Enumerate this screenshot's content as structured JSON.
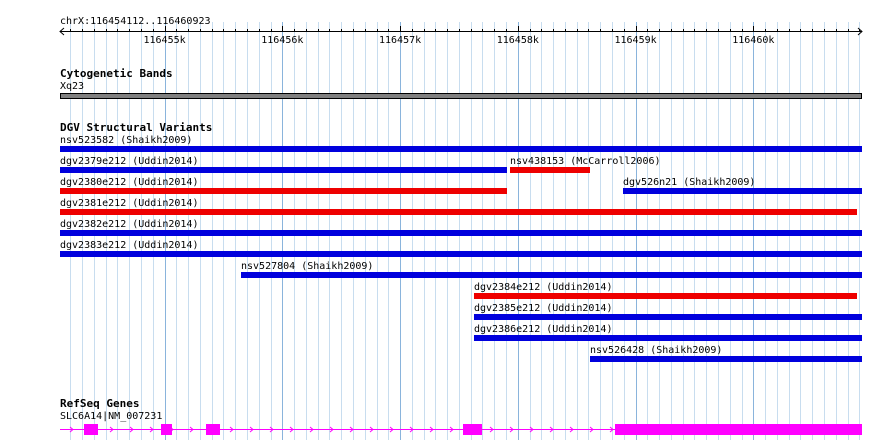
{
  "coords": "chrX:116454112..116460923",
  "ruler": {
    "ticks": [
      {
        "label": "116455k",
        "pos": 116455000
      },
      {
        "label": "116456k",
        "pos": 116456000
      },
      {
        "label": "116457k",
        "pos": 116457000
      },
      {
        "label": "116458k",
        "pos": 116458000
      },
      {
        "label": "116459k",
        "pos": 116459000
      },
      {
        "label": "116460k",
        "pos": 116460000
      }
    ]
  },
  "tracks": {
    "cytogenetic": {
      "title": "Cytogenetic Bands",
      "band": "Xq23"
    },
    "dgv": {
      "title": "DGV Structural Variants",
      "colors": {
        "gain": "#0000dd",
        "loss": "#ee0000"
      },
      "features": [
        {
          "name": "nsv523582 (Shaikh2009)",
          "start": 116454112,
          "end": 116460923,
          "type": "gain",
          "row": 0
        },
        {
          "name": "dgv2379e212 (Uddin2014)",
          "start": 116454112,
          "end": 116457912,
          "type": "gain",
          "row": 1
        },
        {
          "name": "nsv438153 (McCarroll2006)",
          "start": 116457932,
          "end": 116458612,
          "type": "loss",
          "row": 1
        },
        {
          "name": "dgv2380e212 (Uddin2014)",
          "start": 116454112,
          "end": 116457912,
          "type": "loss",
          "row": 2
        },
        {
          "name": "dgv526n21 (Shaikh2009)",
          "start": 116458892,
          "end": 116460923,
          "type": "gain",
          "row": 2
        },
        {
          "name": "dgv2381e212 (Uddin2014)",
          "start": 116454112,
          "end": 116460883,
          "type": "loss",
          "row": 3
        },
        {
          "name": "dgv2382e212 (Uddin2014)",
          "start": 116454112,
          "end": 116460923,
          "type": "gain",
          "row": 4
        },
        {
          "name": "dgv2383e212 (Uddin2014)",
          "start": 116454112,
          "end": 116460923,
          "type": "gain",
          "row": 5
        },
        {
          "name": "nsv527804 (Shaikh2009)",
          "start": 116455652,
          "end": 116460923,
          "type": "gain",
          "row": 6
        },
        {
          "name": "dgv2384e212 (Uddin2014)",
          "start": 116457632,
          "end": 116460883,
          "type": "loss",
          "row": 7
        },
        {
          "name": "dgv2385e212 (Uddin2014)",
          "start": 116457632,
          "end": 116460923,
          "type": "gain",
          "row": 8
        },
        {
          "name": "dgv2386e212 (Uddin2014)",
          "start": 116457632,
          "end": 116460923,
          "type": "gain",
          "row": 9
        },
        {
          "name": "nsv526428 (Shaikh2009)",
          "start": 116458612,
          "end": 116460923,
          "type": "gain",
          "row": 10
        }
      ]
    },
    "refseq": {
      "title": "RefSeq Genes",
      "gene": "SLC6A14|NM_007231",
      "color": "#ff00ff",
      "exons": [
        [
          116454312,
          116454432
        ],
        [
          116454972,
          116455062
        ],
        [
          116455352,
          116455472
        ],
        [
          116457532,
          116457692
        ],
        [
          116458822,
          116460923
        ]
      ]
    }
  }
}
